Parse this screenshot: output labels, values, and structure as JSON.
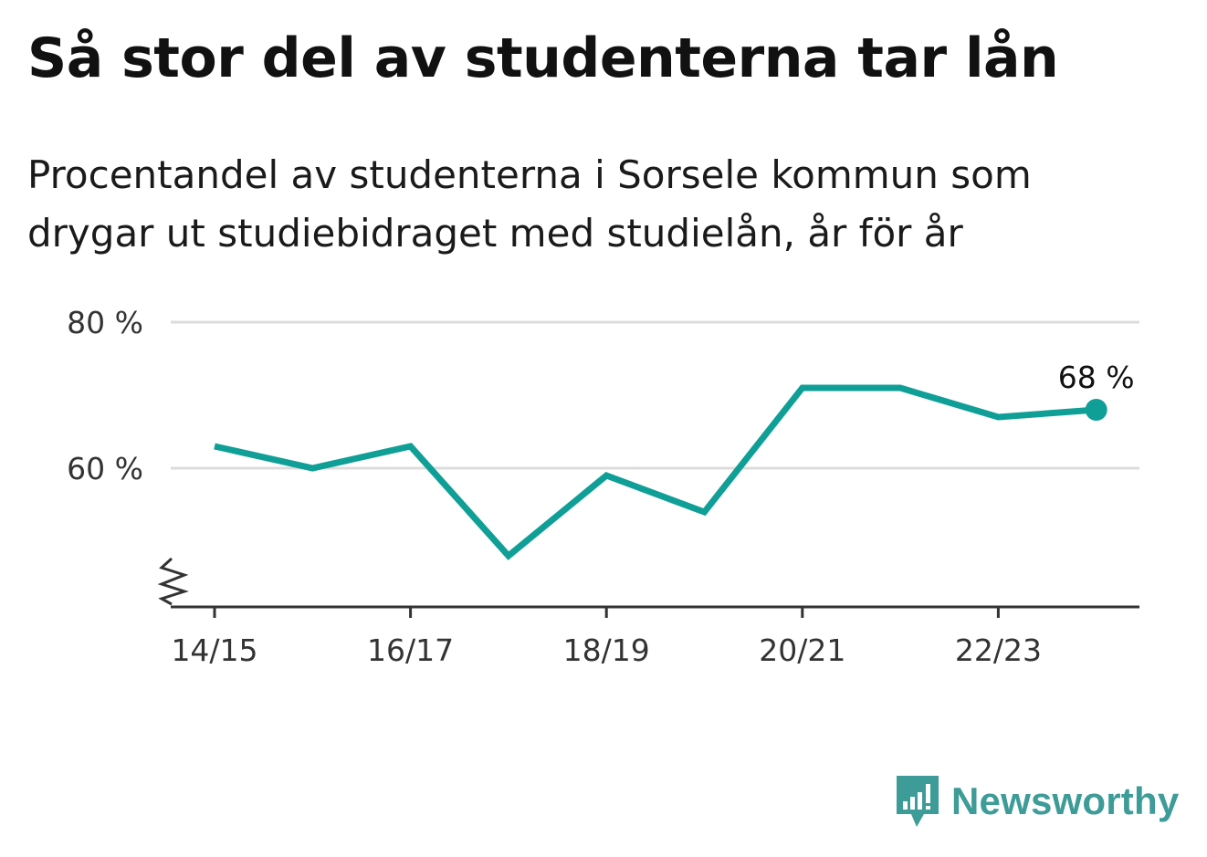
{
  "header": {
    "title": "Så stor del av studenterna tar lån",
    "subtitle": "Procentandel av studenterna i Sorsele kommun som drygar ut studiebidraget med studielån, år för år"
  },
  "logo": {
    "text": "Newsworthy",
    "icon": "newsworthy-chart-bubble-icon",
    "color": "#3d9c98"
  },
  "chart_data": {
    "type": "line",
    "title": "Så stor del av studenterna tar lån",
    "x": [
      "14/15",
      "15/16",
      "16/17",
      "17/18",
      "18/19",
      "19/20",
      "20/21",
      "21/22",
      "22/23",
      "23/24"
    ],
    "x_tick_labels": [
      "14/15",
      "16/17",
      "18/19",
      "20/21",
      "22/23"
    ],
    "series": [
      {
        "values": [
          63,
          60,
          63,
          48,
          59,
          54,
          71,
          71,
          67,
          68
        ],
        "color": "#0f9f97"
      }
    ],
    "ylim": [
      40,
      80
    ],
    "y_ticks": [
      {
        "value": 60,
        "label": "60 %"
      },
      {
        "value": 80,
        "label": "80 %"
      }
    ],
    "y_axis_break": true,
    "end_label": "68 %",
    "grid": true,
    "xlabel": "",
    "ylabel": ""
  }
}
